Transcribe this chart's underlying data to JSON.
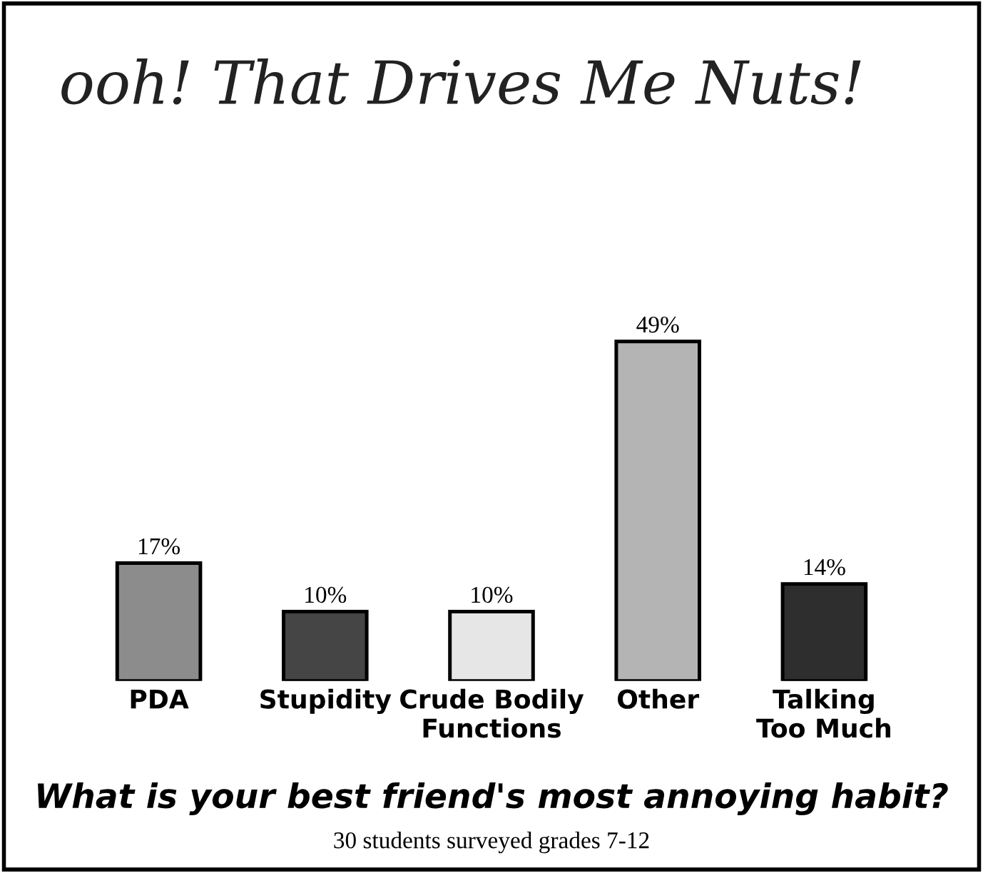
{
  "chart_data": {
    "type": "bar",
    "title": "ooh! That Drives Me Nuts!",
    "xlabel": "What is your best friend's most annoying habit?",
    "annotations": [
      "30 students surveyed grades 7-12"
    ],
    "categories": [
      "PDA",
      "Stupidity",
      "Crude Bodily Functions",
      "Other",
      "Talking Too Much"
    ],
    "values": [
      17,
      10,
      10,
      49,
      14
    ],
    "value_labels": [
      "17%",
      "10%",
      "10%",
      "49%",
      "14%"
    ],
    "colors": [
      "#8c8c8c",
      "#454545",
      "#e6e6e6",
      "#b4b4b4",
      "#2e2e2e"
    ],
    "grid": false,
    "legend": false
  }
}
